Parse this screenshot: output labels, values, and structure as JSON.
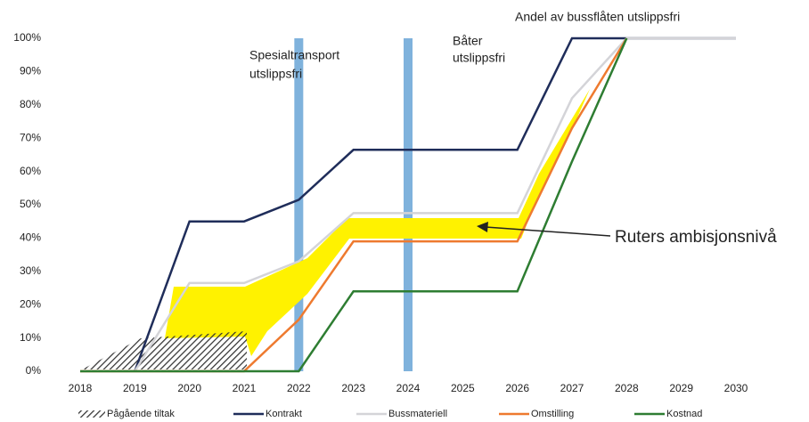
{
  "chart_data": {
    "type": "line",
    "x": [
      2018,
      2019,
      2020,
      2021,
      2022,
      2023,
      2024,
      2025,
      2026,
      2027,
      2028,
      2029,
      2030
    ],
    "xlim": [
      2018,
      2030
    ],
    "xticks": [
      2018,
      2019,
      2020,
      2021,
      2022,
      2023,
      2024,
      2025,
      2026,
      2027,
      2028,
      2029,
      2030
    ],
    "ylim": [
      0,
      100
    ],
    "yticks": [
      {
        "value": 0,
        "label": "0%"
      },
      {
        "value": 10,
        "label": "10%"
      },
      {
        "value": 20,
        "label": "20%"
      },
      {
        "value": 30,
        "label": "30%"
      },
      {
        "value": 40,
        "label": "40%"
      },
      {
        "value": 50,
        "label": "50%"
      },
      {
        "value": 60,
        "label": "60%"
      },
      {
        "value": 70,
        "label": "70%"
      },
      {
        "value": 80,
        "label": "80%"
      },
      {
        "value": 90,
        "label": "90%"
      },
      {
        "value": 100,
        "label": "100%"
      }
    ],
    "series": [
      {
        "name": "Kontrakt",
        "color": "#1f2d5a",
        "values": [
          null,
          0,
          45,
          45,
          51.5,
          66.5,
          66.5,
          66.5,
          66.5,
          100,
          100,
          100,
          100
        ]
      },
      {
        "name": "Bussmateriell",
        "color": "#d4d4d8",
        "values": [
          null,
          0,
          26.5,
          26.5,
          33,
          47.5,
          47.5,
          47.5,
          47.5,
          82,
          100,
          100,
          100
        ]
      },
      {
        "name": "Omstilling",
        "color": "#ee7a2f",
        "values": [
          0,
          0,
          0,
          0,
          15.5,
          39,
          39,
          39,
          39,
          73,
          100,
          null,
          null
        ]
      },
      {
        "name": "Kostnad",
        "color": "#2e7d32",
        "values": [
          0,
          0,
          0,
          0,
          0,
          24,
          24,
          24,
          24,
          63,
          100,
          null,
          null
        ]
      }
    ],
    "vertical_bands": [
      2022,
      2024
    ],
    "hatch_legend": "Pågående tiltak",
    "annotations": {
      "spesial": [
        "Spesialtransport",
        "utslippsfri"
      ],
      "baater": [
        "Båter",
        "utslippsfri"
      ],
      "andel": "Andel av bussflåten utslippsfri",
      "ambisjon": "Ruters ambisjonsnivå"
    }
  }
}
